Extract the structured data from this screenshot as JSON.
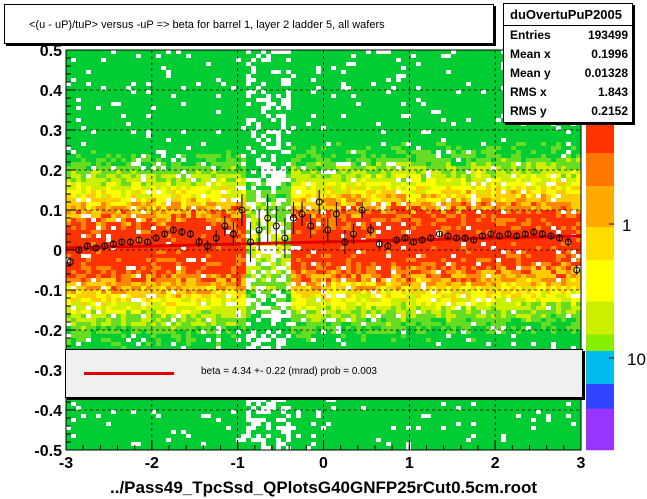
{
  "chart_data": {
    "type": "heatmap",
    "title": "<(u - uP)/tuP> versus  -uP => beta for barrel 1, layer 2 ladder 5, all wafers",
    "xlabel": "../Pass49_TpcSsd_QPlotsG40GNFP25rCut0.5cm.root",
    "xlim": [
      -3,
      3
    ],
    "ylim": [
      -0.5,
      0.5
    ],
    "xticks": [
      "-3",
      "-2",
      "-1",
      "0",
      "1",
      "2",
      "3"
    ],
    "yticks": [
      "-0.5",
      "-0.4",
      "-0.3",
      "-0.2",
      "-0.1",
      "0",
      "0.1",
      "0.2",
      "0.3",
      "0.4",
      "0.5"
    ],
    "grid": true,
    "colorbar_labels": [
      "1",
      "10"
    ],
    "stats": {
      "name": "duOvertuPuP2005",
      "entries": [
        {
          "label": "Entries",
          "value": "193499"
        },
        {
          "label": "Mean x",
          "value": "0.1996"
        },
        {
          "label": "Mean y",
          "value": "0.01328"
        },
        {
          "label": "RMS x",
          "value": "1.843"
        },
        {
          "label": "RMS y",
          "value": "0.2152"
        }
      ]
    },
    "fit_legend": "beta =     4.34 +-  0.22 (mrad) prob = 0.003",
    "fit_line": {
      "x": [
        -3,
        3
      ],
      "y": [
        0.005,
        0.035
      ],
      "color": "#e00000"
    },
    "profile_points": {
      "x": [
        -2.95,
        -2.85,
        -2.75,
        -2.65,
        -2.55,
        -2.45,
        -2.35,
        -2.25,
        -2.15,
        -2.05,
        -1.95,
        -1.85,
        -1.75,
        -1.65,
        -1.55,
        -1.45,
        -1.35,
        -1.25,
        -1.15,
        -1.05,
        -0.95,
        -0.85,
        -0.75,
        -0.65,
        -0.55,
        -0.45,
        -0.35,
        -0.25,
        -0.15,
        -0.05,
        0.05,
        0.15,
        0.25,
        0.35,
        0.45,
        0.55,
        0.65,
        0.75,
        0.85,
        0.95,
        1.05,
        1.15,
        1.25,
        1.35,
        1.45,
        1.55,
        1.65,
        1.75,
        1.85,
        1.95,
        2.05,
        2.15,
        2.25,
        2.35,
        2.45,
        2.55,
        2.65,
        2.75,
        2.85,
        2.95
      ],
      "y": [
        -0.03,
        0.0,
        0.01,
        0.005,
        0.01,
        0.015,
        0.02,
        0.02,
        0.025,
        0.02,
        0.03,
        0.04,
        0.05,
        0.045,
        0.04,
        0.02,
        0.01,
        0.03,
        0.06,
        0.04,
        0.1,
        0.02,
        0.05,
        0.08,
        0.06,
        0.03,
        0.08,
        0.09,
        0.06,
        0.12,
        0.05,
        0.09,
        0.02,
        0.04,
        0.1,
        0.05,
        0.015,
        0.01,
        0.025,
        0.03,
        0.02,
        0.025,
        0.03,
        0.04,
        0.035,
        0.03,
        0.03,
        0.025,
        0.035,
        0.04,
        0.035,
        0.04,
        0.035,
        0.04,
        0.045,
        0.04,
        0.035,
        0.03,
        0.02,
        -0.05
      ],
      "yerr": [
        0.01,
        0.008,
        0.008,
        0.008,
        0.007,
        0.007,
        0.007,
        0.007,
        0.007,
        0.007,
        0.008,
        0.008,
        0.009,
        0.01,
        0.01,
        0.012,
        0.015,
        0.02,
        0.025,
        0.03,
        0.04,
        0.05,
        0.05,
        0.06,
        0.05,
        0.05,
        0.04,
        0.03,
        0.03,
        0.03,
        0.03,
        0.03,
        0.03,
        0.025,
        0.02,
        0.015,
        0.012,
        0.01,
        0.009,
        0.008,
        0.007,
        0.007,
        0.007,
        0.007,
        0.007,
        0.007,
        0.007,
        0.007,
        0.007,
        0.007,
        0.007,
        0.007,
        0.007,
        0.007,
        0.007,
        0.008,
        0.008,
        0.009,
        0.01,
        0.012
      ]
    },
    "colors": {
      "low": "#00cc33",
      "mid": "#ffff00",
      "high": "#ff3300",
      "point": "#000000",
      "fit": "#e00000"
    }
  }
}
